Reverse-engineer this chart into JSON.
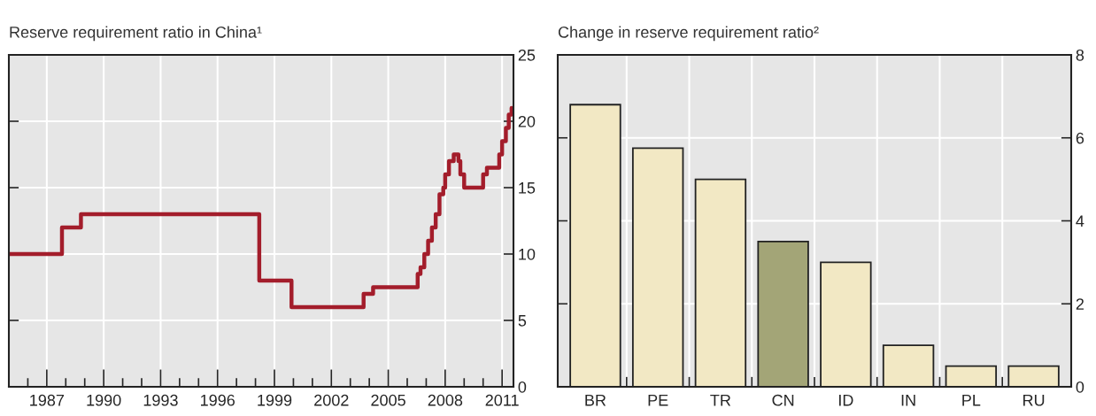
{
  "chart_data": [
    {
      "type": "step",
      "title": "Reserve requirement ratio in China¹",
      "x": [
        1985.0,
        1987.8,
        1988.8,
        1998.2,
        1999.9,
        2003.7,
        2004.2,
        2006.55,
        2006.7,
        2006.9,
        2007.1,
        2007.3,
        2007.5,
        2007.7,
        2007.9,
        2008.0,
        2008.2,
        2008.45,
        2008.7,
        2008.8,
        2009.0,
        2010.0,
        2010.2,
        2010.3,
        2010.85,
        2011.0,
        2011.2,
        2011.35,
        2011.5
      ],
      "series": [
        {
          "color": "#a31d2b",
          "values": [
            10,
            12,
            13,
            8,
            6,
            7,
            7.5,
            8.5,
            9,
            10,
            11,
            12,
            13,
            14.5,
            15,
            16,
            17,
            17.5,
            17,
            16,
            15,
            16,
            16.5,
            16.5,
            17.5,
            18.5,
            19.5,
            20.5,
            21
          ]
        }
      ],
      "xlim": [
        1985,
        2011.6
      ],
      "xticks": [
        {
          "value": 1986,
          "label": null
        },
        1987,
        {
          "value": 1988,
          "label": null
        },
        {
          "value": 1989,
          "label": null
        },
        1990,
        {
          "value": 1991,
          "label": null
        },
        {
          "value": 1992,
          "label": null
        },
        1993,
        {
          "value": 1994,
          "label": null
        },
        {
          "value": 1995,
          "label": null
        },
        1996,
        {
          "value": 1997,
          "label": null
        },
        {
          "value": 1998,
          "label": null
        },
        1999,
        {
          "value": 2000,
          "label": null
        },
        {
          "value": 2001,
          "label": null
        },
        2002,
        {
          "value": 2003,
          "label": null
        },
        {
          "value": 2004,
          "label": null
        },
        2005,
        {
          "value": 2006,
          "label": null
        },
        {
          "value": 2007,
          "label": null
        },
        2008,
        {
          "value": 2009,
          "label": null
        },
        {
          "value": 2010,
          "label": null
        },
        2011
      ],
      "ylim": [
        0,
        25
      ],
      "yticks": [
        0,
        5,
        10,
        15,
        20,
        25
      ],
      "grid": true
    },
    {
      "type": "bar",
      "title": "Change in reserve requirement ratio²",
      "categories": [
        "BR",
        "PE",
        "TR",
        "CN",
        "ID",
        "IN",
        "PL",
        "RU"
      ],
      "values": [
        6.8,
        5.75,
        5.0,
        3.5,
        3.0,
        1.0,
        0.5,
        0.5
      ],
      "colors": [
        "#f2e8c4",
        "#f2e8c4",
        "#f2e8c4",
        "#a3a577",
        "#f2e8c4",
        "#f2e8c4",
        "#f2e8c4",
        "#f2e8c4"
      ],
      "ylim": [
        0,
        8
      ],
      "yticks": [
        0,
        2,
        4,
        6,
        8
      ],
      "grid": true
    }
  ]
}
